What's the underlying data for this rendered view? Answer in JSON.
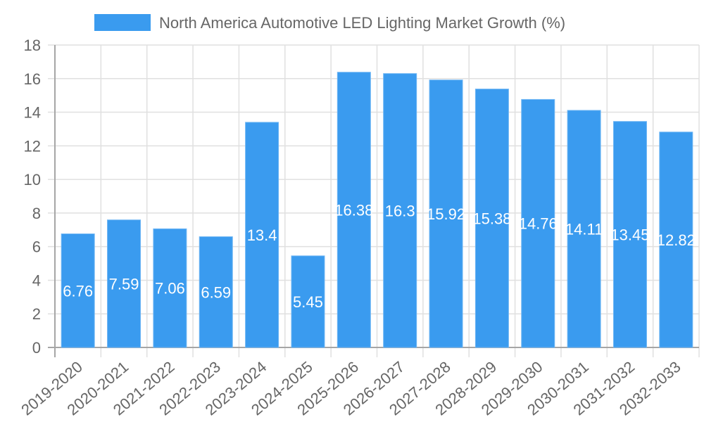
{
  "chart_data": {
    "type": "bar",
    "title": "",
    "legend": {
      "position": "top",
      "entries": [
        {
          "label": "North America Automotive LED Lighting Market Growth (%)",
          "color": "#3a9bef"
        }
      ]
    },
    "categories": [
      "2019-2020",
      "2020-2021",
      "2021-2022",
      "2022-2023",
      "2023-2024",
      "2024-2025",
      "2025-2026",
      "2026-2027",
      "2027-2028",
      "2028-2029",
      "2029-2030",
      "2030-2031",
      "2031-2032",
      "2032-2033"
    ],
    "series": [
      {
        "name": "North America Automotive LED Lighting Market Growth (%)",
        "color": "#3a9bef",
        "values": [
          6.76,
          7.59,
          7.06,
          6.59,
          13.4,
          5.45,
          16.38,
          16.3,
          15.92,
          15.38,
          14.76,
          14.11,
          13.45,
          12.82
        ],
        "data_labels": [
          "6.76",
          "7.59",
          "7.06",
          "6.59",
          "13.4",
          "5.45",
          "16.38",
          "16.3",
          "15.92",
          "15.38",
          "14.76",
          "14.11",
          "13.45",
          "12.82"
        ]
      }
    ],
    "xlabel": "",
    "ylabel": "",
    "ylim": [
      0,
      18
    ],
    "yticks": [
      0,
      2,
      4,
      6,
      8,
      10,
      12,
      14,
      16,
      18
    ],
    "ytick_labels": [
      "0",
      "2",
      "4",
      "6",
      "8",
      "10",
      "12",
      "14",
      "16",
      "18"
    ],
    "xtick_rotation_deg": -40,
    "grid": true
  }
}
